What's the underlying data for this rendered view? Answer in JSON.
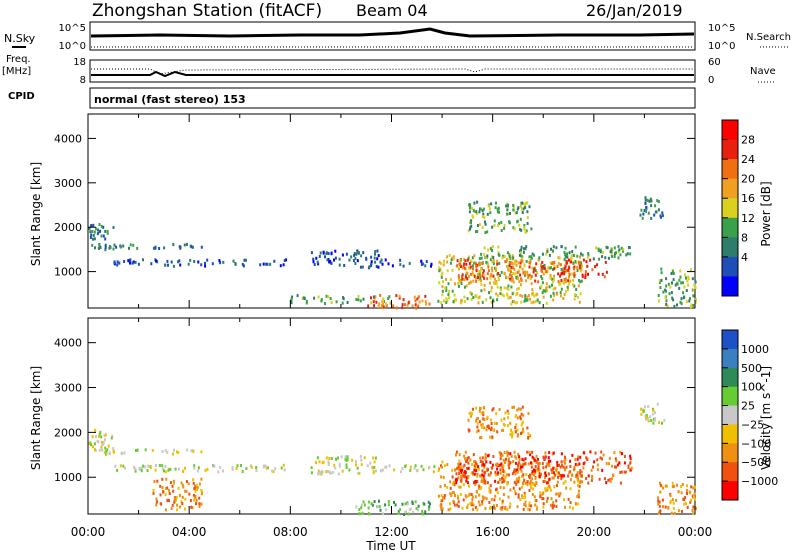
{
  "header": {
    "station": "Zhongshan Station (fitACF)",
    "beam": "Beam 04",
    "date": "26/Jan/2019",
    "mode": "normal (fast stereo) 153"
  },
  "side_labels": {
    "nsky": "N.Sky",
    "nsearch": "N.Search",
    "freq_top": "Freq.",
    "freq_unit": "[MHz]",
    "cpid": "CPID",
    "nave": "Nave",
    "nsky_ticks": [
      "10^5",
      "10^0"
    ],
    "nsearch_ticks": [
      "10^5",
      "10^0"
    ],
    "freq_ticks": [
      "18",
      "8"
    ],
    "nave_ticks": [
      "60",
      "0"
    ]
  },
  "chart_data": [
    {
      "type": "heatmap",
      "name": "power",
      "ylabel": "Slant Range [km]",
      "ylim": [
        180,
        4550
      ],
      "xlim": [
        0,
        24
      ],
      "ytick_values": [
        1000,
        2000,
        3000,
        4000
      ],
      "yticks": [
        "1000",
        "2000",
        "3000",
        "4000"
      ],
      "colorbar": {
        "label": "Power [dB]",
        "tick_values": [
          4,
          8,
          12,
          16,
          20,
          24,
          28
        ],
        "ticks": [
          "4",
          "8",
          "12",
          "16",
          "20",
          "24",
          "28"
        ],
        "colors": [
          "#0000ff",
          "#1e4fb8",
          "#2e7d6b",
          "#3aa04a",
          "#d9d020",
          "#f0a020",
          "#f07010",
          "#e82010",
          "#ff0000"
        ]
      },
      "echo_regions": [
        {
          "t": [
            0.0,
            1.0
          ],
          "r": [
            1500,
            2100
          ],
          "level": 2
        },
        {
          "t": [
            0.3,
            4.5
          ],
          "r": [
            1550,
            1650
          ],
          "level": 2
        },
        {
          "t": [
            1.0,
            7.8
          ],
          "r": [
            1150,
            1300
          ],
          "level": 1
        },
        {
          "t": [
            8.8,
            11.5
          ],
          "r": [
            1100,
            1500
          ],
          "level": 1
        },
        {
          "t": [
            11.5,
            13.7
          ],
          "r": [
            1150,
            1300
          ],
          "level": 1
        },
        {
          "t": [
            11.0,
            13.5
          ],
          "r": [
            200,
            500
          ],
          "level": 6
        },
        {
          "t": [
            8.0,
            12.0
          ],
          "r": [
            300,
            500
          ],
          "level": 3
        },
        {
          "t": [
            13.8,
            19.5
          ],
          "r": [
            300,
            1400
          ],
          "level": 4
        },
        {
          "t": [
            14.5,
            19.0
          ],
          "r": [
            800,
            1300
          ],
          "level": 6
        },
        {
          "t": [
            15.5,
            21.5
          ],
          "r": [
            1300,
            1600
          ],
          "level": 3
        },
        {
          "t": [
            18.5,
            20.5
          ],
          "r": [
            900,
            1300
          ],
          "level": 7
        },
        {
          "t": [
            21.8,
            22.8
          ],
          "r": [
            2200,
            2700
          ],
          "level": 2
        },
        {
          "t": [
            22.5,
            24.0
          ],
          "r": [
            200,
            1100
          ],
          "level": 3
        },
        {
          "t": [
            15.0,
            17.5
          ],
          "r": [
            1900,
            2600
          ],
          "level": 3
        }
      ]
    },
    {
      "type": "heatmap",
      "name": "velocity",
      "ylabel": "Slant Range [km]",
      "xlabel": "Time UT",
      "ylim": [
        180,
        4550
      ],
      "xlim": [
        0,
        24
      ],
      "xtick_values": [
        0,
        4,
        8,
        12,
        16,
        20,
        24
      ],
      "xticks": [
        "00:00",
        "04:00",
        "08:00",
        "12:00",
        "16:00",
        "20:00",
        "00:00"
      ],
      "ytick_values": [
        1000,
        2000,
        3000,
        4000
      ],
      "yticks": [
        "1000",
        "2000",
        "3000",
        "4000"
      ],
      "colorbar": {
        "label": "Velocity [m s^-1]",
        "tick_values": [
          1000,
          500,
          100,
          25,
          -25,
          -100,
          -500,
          -1000
        ],
        "ticks": [
          "1000",
          "500",
          "100",
          "25",
          "−25",
          "−100",
          "−500",
          "−1000"
        ],
        "colors": [
          "#1e50c8",
          "#3a80c0",
          "#2e8b57",
          "#66cc33",
          "#c8c8c8",
          "#f0c000",
          "#f09010",
          "#f05010",
          "#ff0000"
        ]
      },
      "echo_regions": [
        {
          "t": [
            0.0,
            1.0
          ],
          "r": [
            1500,
            2100
          ],
          "level": 4
        },
        {
          "t": [
            0.3,
            4.5
          ],
          "r": [
            1550,
            1650
          ],
          "level": 4
        },
        {
          "t": [
            1.0,
            7.8
          ],
          "r": [
            1150,
            1300
          ],
          "level": 4
        },
        {
          "t": [
            8.8,
            11.5
          ],
          "r": [
            1100,
            1500
          ],
          "level": 4
        },
        {
          "t": [
            11.5,
            13.7
          ],
          "r": [
            1150,
            1300
          ],
          "level": 4
        },
        {
          "t": [
            10.5,
            13.5
          ],
          "r": [
            200,
            500
          ],
          "level": 3
        },
        {
          "t": [
            2.5,
            4.5
          ],
          "r": [
            300,
            1000
          ],
          "level": 6
        },
        {
          "t": [
            13.8,
            19.5
          ],
          "r": [
            300,
            1400
          ],
          "level": 6
        },
        {
          "t": [
            14.5,
            21.5
          ],
          "r": [
            900,
            1600
          ],
          "level": 7
        },
        {
          "t": [
            15.0,
            17.5
          ],
          "r": [
            1900,
            2600
          ],
          "level": 6
        },
        {
          "t": [
            21.8,
            22.8
          ],
          "r": [
            2200,
            2700
          ],
          "level": 4
        },
        {
          "t": [
            22.5,
            24.0
          ],
          "r": [
            200,
            900
          ],
          "level": 6
        }
      ]
    }
  ]
}
